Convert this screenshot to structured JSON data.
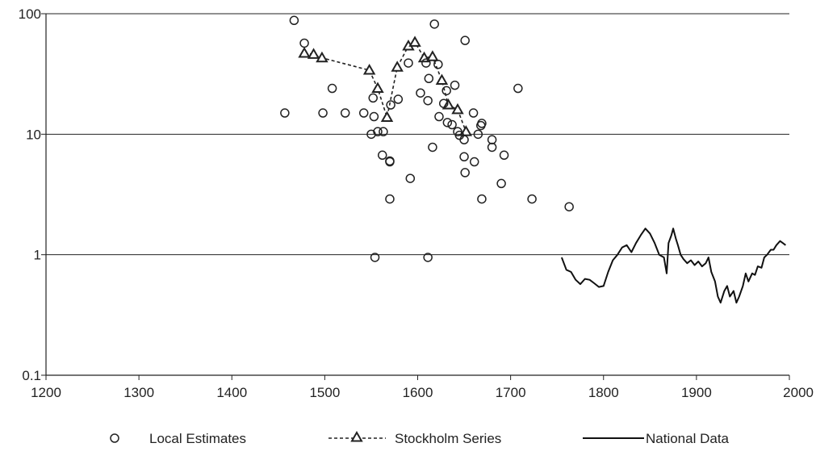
{
  "chart_data": {
    "type": "scatter",
    "title": "",
    "xlabel": "",
    "ylabel": "",
    "xlim": [
      1200,
      2000
    ],
    "ylim": [
      0.1,
      100
    ],
    "y_scale": "log",
    "grid": "horizontal major gridlines",
    "legend_position": "bottom",
    "x_ticks": [
      "1200",
      "1300",
      "1400",
      "1500",
      "1600",
      "1700",
      "1800",
      "1900",
      "2000"
    ],
    "y_ticks": [
      "0.1",
      "1",
      "10",
      "100"
    ],
    "series": [
      {
        "name": "Local Estimates",
        "style": "hollow circle markers",
        "points": [
          [
            1457,
            15
          ],
          [
            1467,
            88
          ],
          [
            1478,
            57
          ],
          [
            1498,
            15
          ],
          [
            1508,
            24
          ],
          [
            1522,
            15
          ],
          [
            1542,
            15
          ],
          [
            1550,
            10
          ],
          [
            1552,
            20
          ],
          [
            1553,
            14
          ],
          [
            1554,
            0.95
          ],
          [
            1557,
            10.5
          ],
          [
            1562,
            6.7
          ],
          [
            1563,
            10.5
          ],
          [
            1570,
            6.0
          ],
          [
            1570,
            5.9
          ],
          [
            1570,
            2.9
          ],
          [
            1571,
            17.5
          ],
          [
            1579,
            19.5
          ],
          [
            1590,
            39
          ],
          [
            1592,
            4.3
          ],
          [
            1603,
            22
          ],
          [
            1609,
            39
          ],
          [
            1611,
            0.95
          ],
          [
            1611,
            19
          ],
          [
            1612,
            29
          ],
          [
            1616,
            7.8
          ],
          [
            1618,
            82
          ],
          [
            1622,
            38
          ],
          [
            1623,
            14
          ],
          [
            1628,
            18
          ],
          [
            1631,
            23
          ],
          [
            1632,
            12.5
          ],
          [
            1637,
            12
          ],
          [
            1640,
            25.5
          ],
          [
            1643,
            10.5
          ],
          [
            1645,
            9.8
          ],
          [
            1650,
            9.0
          ],
          [
            1650,
            6.5
          ],
          [
            1651,
            4.8
          ],
          [
            1651,
            60
          ],
          [
            1660,
            15
          ],
          [
            1661,
            5.9
          ],
          [
            1665,
            10
          ],
          [
            1668,
            11.8
          ],
          [
            1669,
            12.3
          ],
          [
            1669,
            2.9
          ],
          [
            1680,
            9.0
          ],
          [
            1680,
            7.8
          ],
          [
            1690,
            3.9
          ],
          [
            1693,
            6.7
          ],
          [
            1708,
            24
          ],
          [
            1723,
            2.9
          ],
          [
            1763,
            2.5
          ]
        ]
      },
      {
        "name": "Stockholm Series",
        "style": "dashed line with hollow triangle markers",
        "points": [
          [
            1478,
            47
          ],
          [
            1488,
            46
          ],
          [
            1497,
            43
          ],
          [
            1548,
            34
          ],
          [
            1557,
            24
          ],
          [
            1567,
            13.8
          ],
          [
            1578,
            36
          ],
          [
            1590,
            54
          ],
          [
            1597,
            58
          ],
          [
            1607,
            43
          ],
          [
            1616,
            44
          ],
          [
            1626,
            28
          ],
          [
            1633,
            17.5
          ],
          [
            1643,
            16
          ],
          [
            1652,
            10.5
          ]
        ]
      },
      {
        "name": "National Data",
        "style": "solid line",
        "points": [
          [
            1755,
            0.95
          ],
          [
            1760,
            0.75
          ],
          [
            1765,
            0.72
          ],
          [
            1770,
            0.62
          ],
          [
            1775,
            0.57
          ],
          [
            1780,
            0.63
          ],
          [
            1785,
            0.62
          ],
          [
            1790,
            0.58
          ],
          [
            1795,
            0.54
          ],
          [
            1800,
            0.55
          ],
          [
            1805,
            0.72
          ],
          [
            1810,
            0.9
          ],
          [
            1815,
            1.0
          ],
          [
            1820,
            1.15
          ],
          [
            1825,
            1.2
          ],
          [
            1830,
            1.05
          ],
          [
            1835,
            1.25
          ],
          [
            1840,
            1.45
          ],
          [
            1845,
            1.65
          ],
          [
            1850,
            1.5
          ],
          [
            1855,
            1.25
          ],
          [
            1860,
            1.0
          ],
          [
            1865,
            0.95
          ],
          [
            1868,
            0.7
          ],
          [
            1870,
            1.25
          ],
          [
            1873,
            1.45
          ],
          [
            1875,
            1.65
          ],
          [
            1878,
            1.35
          ],
          [
            1880,
            1.2
          ],
          [
            1883,
            1.0
          ],
          [
            1886,
            0.92
          ],
          [
            1890,
            0.85
          ],
          [
            1894,
            0.9
          ],
          [
            1898,
            0.82
          ],
          [
            1902,
            0.88
          ],
          [
            1906,
            0.8
          ],
          [
            1910,
            0.85
          ],
          [
            1913,
            0.95
          ],
          [
            1916,
            0.72
          ],
          [
            1920,
            0.6
          ],
          [
            1923,
            0.45
          ],
          [
            1926,
            0.4
          ],
          [
            1930,
            0.5
          ],
          [
            1933,
            0.55
          ],
          [
            1936,
            0.45
          ],
          [
            1940,
            0.5
          ],
          [
            1943,
            0.4
          ],
          [
            1946,
            0.45
          ],
          [
            1950,
            0.55
          ],
          [
            1953,
            0.7
          ],
          [
            1956,
            0.6
          ],
          [
            1960,
            0.7
          ],
          [
            1963,
            0.68
          ],
          [
            1966,
            0.8
          ],
          [
            1970,
            0.78
          ],
          [
            1973,
            0.95
          ],
          [
            1976,
            1.0
          ],
          [
            1980,
            1.1
          ],
          [
            1983,
            1.1
          ],
          [
            1986,
            1.2
          ],
          [
            1990,
            1.3
          ],
          [
            1993,
            1.25
          ],
          [
            1996,
            1.2
          ]
        ]
      }
    ]
  }
}
